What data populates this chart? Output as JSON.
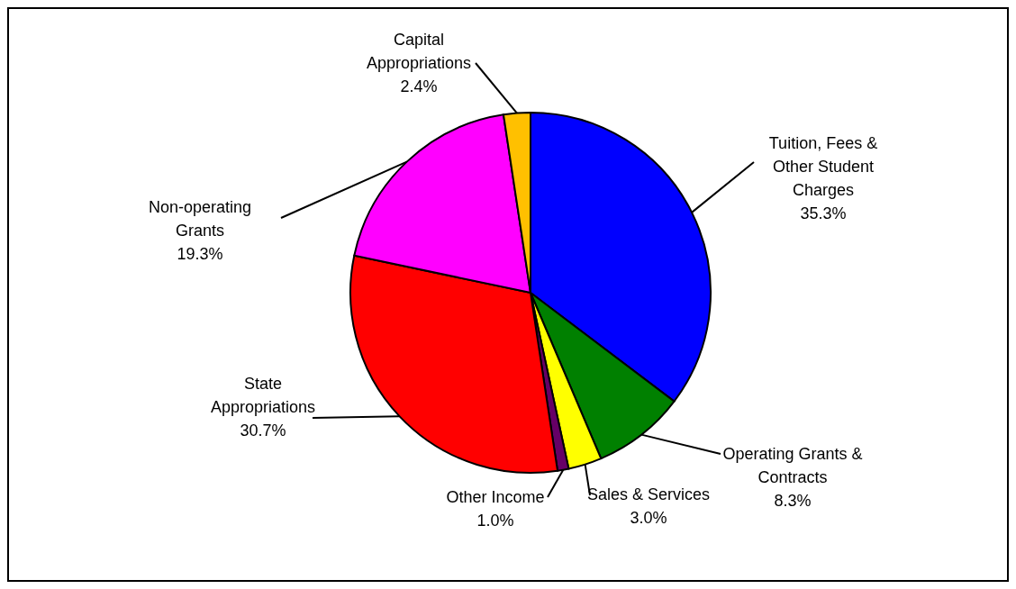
{
  "chart_data": {
    "type": "pie",
    "categories": [
      "Tuition, Fees & Other Student Charges",
      "Operating Grants & Contracts",
      "Sales & Services",
      "Other Income",
      "State Appropriations",
      "Non-operating Grants",
      "Capital Appropriations"
    ],
    "values": [
      35.3,
      8.3,
      3.0,
      1.0,
      30.7,
      19.3,
      2.4
    ],
    "value_labels": [
      "35.3%",
      "8.3%",
      "3.0%",
      "1.0%",
      "30.7%",
      "19.3%",
      "2.4%"
    ],
    "colors": [
      "#0000ff",
      "#008000",
      "#ffff00",
      "#660066",
      "#ff0000",
      "#ff00ff",
      "#ffc000"
    ],
    "legend": false
  }
}
